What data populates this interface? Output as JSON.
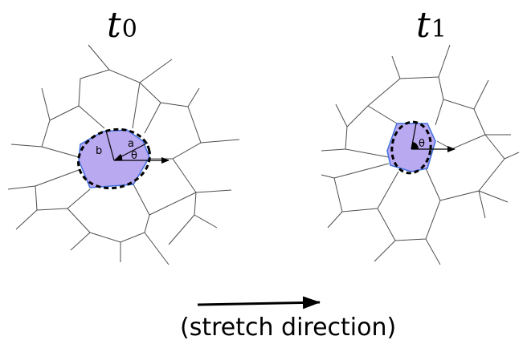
{
  "panels": [
    {
      "title_base": "t",
      "title_sub": "0",
      "semi_major_label": "a",
      "semi_minor_label": "b",
      "angle_label": "θ"
    },
    {
      "title_base": "t",
      "title_sub": "1",
      "angle_label": "θ"
    }
  ],
  "caption": "(stretch direction)",
  "colors": {
    "cell_fill": "#b9a9f0",
    "cell_outline": "#3f6fe0",
    "edges": "#4d4d4d",
    "ellipse": "#000000"
  }
}
